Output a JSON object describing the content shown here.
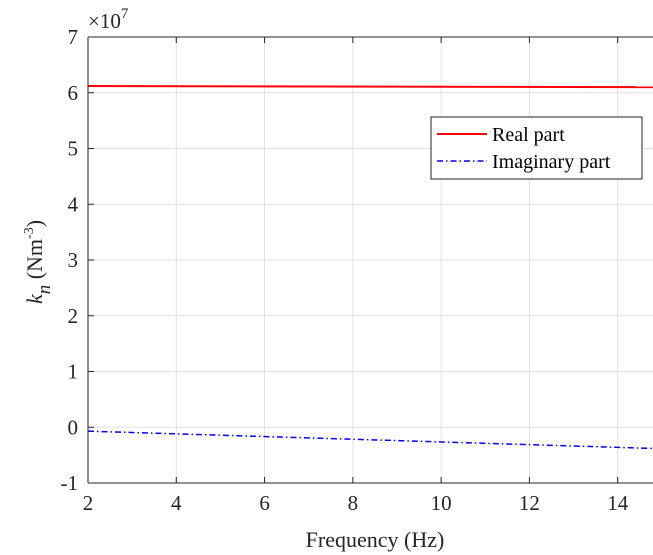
{
  "chart_data": {
    "type": "line",
    "title": "",
    "xlabel": "Frequency (Hz)",
    "ylabel": {
      "symbol": "k",
      "subscript": "n",
      "unit_prefix": " (Nm",
      "unit_superscript": "-3",
      "unit_suffix": ")"
    },
    "y_multiplier": {
      "prefix": "×10",
      "exponent": "7"
    },
    "xlim": [
      2,
      14.8
    ],
    "ylim": [
      -1,
      7
    ],
    "xticks": [
      2,
      4,
      6,
      8,
      10,
      12,
      14
    ],
    "yticks": [
      -1,
      0,
      1,
      2,
      3,
      4,
      5,
      6,
      7
    ],
    "grid": true,
    "legend_position": "upper-right",
    "series": [
      {
        "name": "Real part",
        "color": "#ff0000",
        "style": "solid",
        "x": [
          2,
          14.8
        ],
        "y": [
          6.12,
          6.1
        ]
      },
      {
        "name": "Imaginary part",
        "color": "#0000ff",
        "style": "dashdot",
        "x": [
          2,
          14.8
        ],
        "y": [
          -0.07,
          -0.38
        ]
      }
    ]
  }
}
